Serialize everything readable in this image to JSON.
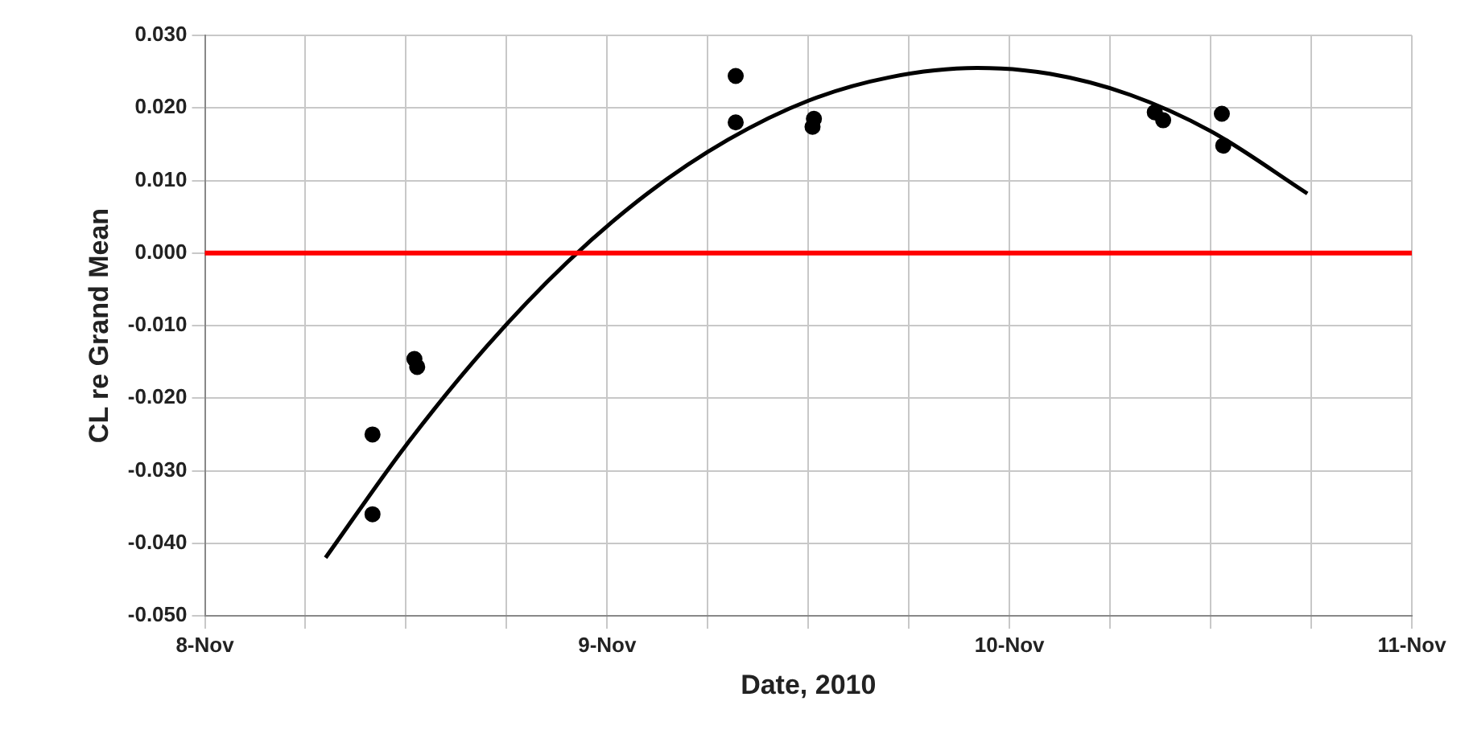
{
  "chart_data": {
    "type": "scatter",
    "xlabel": "Date, 2010",
    "ylabel": "CL re Grand Mean",
    "xlim": [
      "2010-11-08",
      "2010-11-11"
    ],
    "xticks": [
      {
        "value": "2010-11-08",
        "label": "8-Nov"
      },
      {
        "value": "2010-11-08T06:00",
        "label": null
      },
      {
        "value": "2010-11-08T12:00",
        "label": null
      },
      {
        "value": "2010-11-08T18:00",
        "label": null
      },
      {
        "value": "2010-11-09",
        "label": "9-Nov"
      },
      {
        "value": "2010-11-09T06:00",
        "label": null
      },
      {
        "value": "2010-11-09T12:00",
        "label": null
      },
      {
        "value": "2010-11-09T18:00",
        "label": null
      },
      {
        "value": "2010-11-10",
        "label": "10-Nov"
      },
      {
        "value": "2010-11-10T06:00",
        "label": null
      },
      {
        "value": "2010-11-10T12:00",
        "label": null
      },
      {
        "value": "2010-11-10T18:00",
        "label": null
      },
      {
        "value": "2010-11-11",
        "label": "11-Nov"
      }
    ],
    "ylim": [
      -0.05,
      0.03
    ],
    "yticks": [
      {
        "value": -0.05,
        "label": "-0.050"
      },
      {
        "value": -0.04,
        "label": "-0.040"
      },
      {
        "value": -0.03,
        "label": "-0.030"
      },
      {
        "value": -0.02,
        "label": "-0.020"
      },
      {
        "value": -0.01,
        "label": "-0.010"
      },
      {
        "value": 0,
        "label": "0.000"
      },
      {
        "value": 0.01,
        "label": "0.010"
      },
      {
        "value": 0.02,
        "label": "0.020"
      },
      {
        "value": 0.03,
        "label": "0.030"
      }
    ],
    "grid": true,
    "legend": false,
    "marker": "circle",
    "series": [
      {
        "color": "#000000",
        "x": [
          "2010-11-08T10:00",
          "2010-11-08T10:00",
          "2010-11-08T12:30",
          "2010-11-08T12:40",
          "2010-11-09T07:40",
          "2010-11-09T07:40",
          "2010-11-09T12:15",
          "2010-11-09T12:20",
          "2010-11-10T08:40",
          "2010-11-10T09:10",
          "2010-11-10T12:40",
          "2010-11-10T12:45"
        ],
        "values": [
          -0.025,
          -0.036,
          -0.0146,
          -0.0157,
          0.0244,
          0.018,
          0.0174,
          0.0185,
          0.0194,
          0.0183,
          0.0192,
          0.0148
        ]
      },
      {
        "type": "line",
        "marker": "none",
        "color": "#000000",
        "x": [
          "2010-11-08T07:12",
          "2010-11-08T12:00",
          "2010-11-08T16:48",
          "2010-11-08T21:36",
          "2010-11-09T02:24",
          "2010-11-09T07:12",
          "2010-11-09T12:00",
          "2010-11-09T16:48",
          "2010-11-09T22:05",
          "2010-11-10T02:24",
          "2010-11-10T07:12",
          "2010-11-10T12:00",
          "2010-11-10T17:46"
        ],
        "values": [
          -0.042,
          -0.0265,
          -0.0129,
          -0.0013,
          0.0082,
          0.0156,
          0.021,
          0.0242,
          0.0255,
          0.0247,
          0.0218,
          0.0168,
          0.0082
        ]
      }
    ],
    "ref_lines": [
      {
        "axis": "y",
        "value": 0,
        "color": "#ff0000"
      }
    ]
  }
}
